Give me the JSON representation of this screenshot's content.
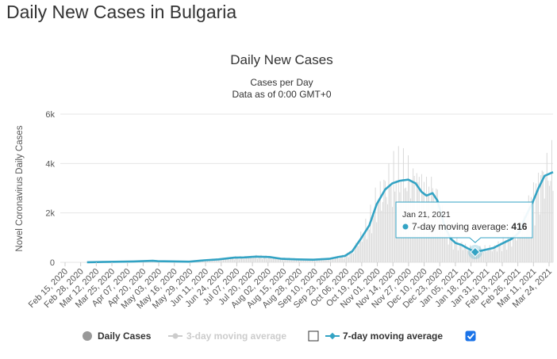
{
  "page": {
    "title": "Daily New Cases in Bulgaria"
  },
  "chart_data": {
    "type": "line",
    "title": "Daily New Cases",
    "subtitle_lines": [
      "Cases per Day",
      "Data as of 0:00 GMT+0"
    ],
    "ylabel": "Novel Coronavirus Daily Cases",
    "ylim": [
      0,
      6000
    ],
    "y_ticks": [
      0,
      2000,
      4000,
      6000
    ],
    "y_tick_labels": [
      "0",
      "2k",
      "4k",
      "6k"
    ],
    "x_range": [
      "2020-02-15",
      "2021-03-26"
    ],
    "x_tick_labels": [
      "Feb 15, 2020",
      "Feb 28, 2020",
      "Mar 12, 2020",
      "Mar 25, 2020",
      "Apr 07, 2020",
      "Apr 20, 2020",
      "May 03, 2020",
      "May 16, 2020",
      "May 29, 2020",
      "Jun 11, 2020",
      "Jun 24, 2020",
      "Jul 07, 2020",
      "Jul 20, 2020",
      "Aug 02, 2020",
      "Aug 15, 2020",
      "Aug 28, 2020",
      "Sep 10, 2020",
      "Sep 23, 2020",
      "Oct 06, 2020",
      "Oct 19, 2020",
      "Nov 01, 2020",
      "Nov 14, 2020",
      "Nov 27, 2020",
      "Dec 10, 2020",
      "Dec 23, 2020",
      "Jan 05, 2021",
      "Jan 18, 2021",
      "Jan 31, 2021",
      "Feb 13, 2021",
      "Feb 26, 2021",
      "Mar 11, 2021",
      "Mar 24, 2021"
    ],
    "grid": true,
    "legend_position": "bottom",
    "series": [
      {
        "name": "Daily Cases",
        "color": "#cccccc",
        "visible": true,
        "note_values": "daily values shown as faint bars; approximated from moving average"
      },
      {
        "name": "3-day moving average",
        "color": "#cccccc",
        "visible": false
      },
      {
        "name": "7-day moving average",
        "color": "#33a3c4",
        "visible": true,
        "points": [
          [
            "2020-03-08",
            3
          ],
          [
            "2020-03-25",
            20
          ],
          [
            "2020-04-15",
            35
          ],
          [
            "2020-05-01",
            60
          ],
          [
            "2020-05-05",
            45
          ],
          [
            "2020-05-31",
            25
          ],
          [
            "2020-06-12",
            80
          ],
          [
            "2020-06-24",
            120
          ],
          [
            "2020-07-07",
            190
          ],
          [
            "2020-07-15",
            200
          ],
          [
            "2020-07-25",
            230
          ],
          [
            "2020-08-05",
            215
          ],
          [
            "2020-08-15",
            140
          ],
          [
            "2020-08-28",
            120
          ],
          [
            "2020-09-10",
            105
          ],
          [
            "2020-09-23",
            140
          ],
          [
            "2020-10-01",
            220
          ],
          [
            "2020-10-06",
            260
          ],
          [
            "2020-10-12",
            450
          ],
          [
            "2020-10-19",
            950
          ],
          [
            "2020-10-26",
            1500
          ],
          [
            "2020-11-01",
            2350
          ],
          [
            "2020-11-08",
            2950
          ],
          [
            "2020-11-14",
            3200
          ],
          [
            "2020-11-20",
            3300
          ],
          [
            "2020-11-27",
            3350
          ],
          [
            "2020-12-03",
            3200
          ],
          [
            "2020-12-08",
            2850
          ],
          [
            "2020-12-12",
            2700
          ],
          [
            "2020-12-17",
            2800
          ],
          [
            "2020-12-21",
            2500
          ],
          [
            "2020-12-27",
            1450
          ],
          [
            "2021-01-01",
            950
          ],
          [
            "2021-01-05",
            780
          ],
          [
            "2021-01-10",
            700
          ],
          [
            "2021-01-15",
            560
          ],
          [
            "2021-01-21",
            416
          ],
          [
            "2021-01-28",
            490
          ],
          [
            "2021-02-05",
            580
          ],
          [
            "2021-02-13",
            780
          ],
          [
            "2021-02-20",
            950
          ],
          [
            "2021-02-26",
            1200
          ],
          [
            "2021-03-03",
            1800
          ],
          [
            "2021-03-09",
            2400
          ],
          [
            "2021-03-14",
            3000
          ],
          [
            "2021-03-19",
            3500
          ],
          [
            "2021-03-26",
            3650
          ]
        ]
      }
    ],
    "tooltip": {
      "date": "Jan 21, 2021",
      "label": "7-day moving average: ",
      "value": "416"
    }
  }
}
